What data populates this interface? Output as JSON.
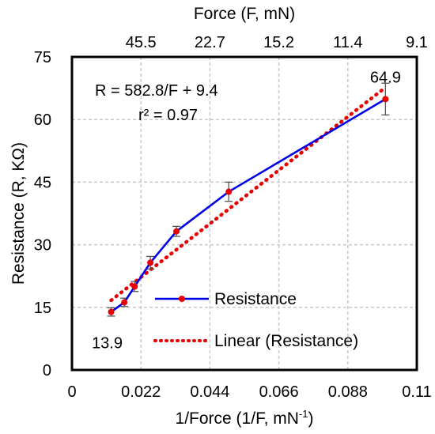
{
  "chart_data": {
    "type": "line",
    "xlabel": "1/Force (1/F, mN",
    "xlabel_superscript": "-1",
    "xlabel_suffix": ")",
    "ylabel": "Resistance (R, KΩ)",
    "top_axis_label": "Force (F, mN)",
    "xlim": [
      0,
      0.11
    ],
    "ylim": [
      0,
      75
    ],
    "x_ticks": [
      0,
      0.022,
      0.044,
      0.066,
      0.088,
      0.11
    ],
    "x_tick_labels": [
      "0",
      "0.022",
      "0.044",
      "0.066",
      "0.088",
      "0.11"
    ],
    "y_ticks": [
      0,
      15,
      30,
      45,
      60,
      75
    ],
    "y_tick_labels": [
      "0",
      "15",
      "30",
      "45",
      "60",
      "75"
    ],
    "top_ticks": [
      {
        "x": 0.022,
        "label": "45.5"
      },
      {
        "x": 0.044,
        "label": "22.7"
      },
      {
        "x": 0.066,
        "label": "15.2"
      },
      {
        "x": 0.088,
        "label": "11.4"
      },
      {
        "x": 0.11,
        "label": "9.1"
      }
    ],
    "grid": true,
    "series": [
      {
        "name": "Resistance",
        "color": "#0000e6",
        "marker_color": "#e60000",
        "x": [
          0.0125,
          0.0167,
          0.02,
          0.025,
          0.0333,
          0.05,
          0.1
        ],
        "y": [
          13.9,
          16.2,
          20.0,
          25.7,
          33.2,
          42.7,
          64.9
        ],
        "err": [
          1.0,
          1.0,
          1.2,
          1.5,
          1.2,
          2.3,
          3.8
        ]
      },
      {
        "name": "Linear (Resistance)",
        "color": "#e60000",
        "style": "dotted",
        "slope": 582.8,
        "intercept": 9.4,
        "x_range": [
          0.0125,
          0.1
        ]
      }
    ],
    "annotations": {
      "equation": "R = 582.8/F + 9.4",
      "r2": "r² = 0.97",
      "first_value": "13.9",
      "last_value": "64.9"
    },
    "legend": {
      "placement": "bottom-right",
      "entries": [
        "Resistance",
        "Linear (Resistance)"
      ]
    }
  }
}
